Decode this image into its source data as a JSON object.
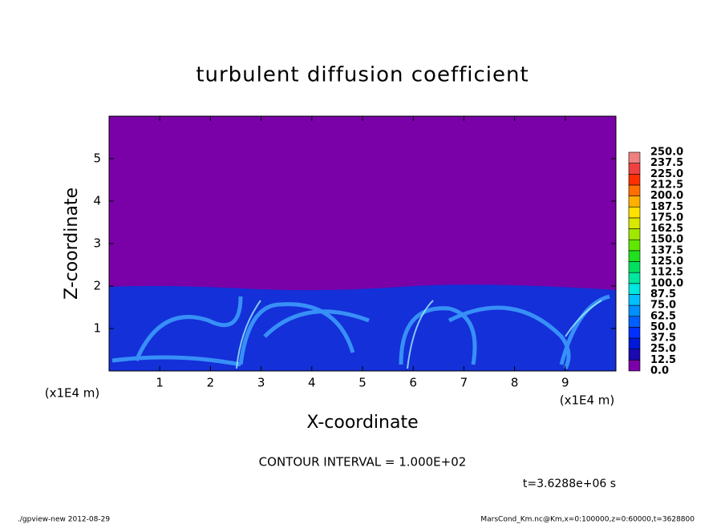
{
  "chart_data": {
    "type": "contour",
    "title": "turbulent diffusion coefficient",
    "xlabel": "X-coordinate",
    "ylabel": "Z-coordinate",
    "xunit": "(x1E4 m)",
    "yunit": "(x1E4 m)",
    "xlim": [
      0,
      10
    ],
    "ylim": [
      0,
      6
    ],
    "xticks": [
      1,
      2,
      3,
      4,
      5,
      6,
      7,
      8,
      9
    ],
    "yticks": [
      1,
      2,
      3,
      4,
      5
    ],
    "contour_interval": "CONTOUR INTERVAL = 1.000E+02",
    "time_label": "t=3.6288e+06 s",
    "footer_left": "./gpview-new  2012-08-29",
    "footer_right": "MarsCond_Km.nc@Km,x=0:100000,z=0:60000,t=3628800",
    "colorbar": {
      "levels": [
        {
          "value": 0,
          "label": "0.0"
        },
        {
          "value": 12.5,
          "label": "12.5"
        },
        {
          "value": 25,
          "label": "25.0"
        },
        {
          "value": 37.5,
          "label": "37.5"
        },
        {
          "value": 50,
          "label": "50.0"
        },
        {
          "value": 62.5,
          "label": "62.5"
        },
        {
          "value": 75,
          "label": "75.0"
        },
        {
          "value": 87.5,
          "label": "87.5"
        },
        {
          "value": 100,
          "label": "100.0"
        },
        {
          "value": 112.5,
          "label": "112.5"
        },
        {
          "value": 125,
          "label": "125.0"
        },
        {
          "value": 137.5,
          "label": "137.5"
        },
        {
          "value": 150,
          "label": "150.0"
        },
        {
          "value": 162.5,
          "label": "162.5"
        },
        {
          "value": 175,
          "label": "175.0"
        },
        {
          "value": 187.5,
          "label": "187.5"
        },
        {
          "value": 200,
          "label": "200.0"
        },
        {
          "value": 212.5,
          "label": "212.5"
        },
        {
          "value": 225,
          "label": "225.0"
        },
        {
          "value": 237.5,
          "label": "237.5"
        },
        {
          "value": 250,
          "label": "250.0"
        }
      ],
      "colors": [
        "#7a00a8",
        "#1a0ab0",
        "#0018d8",
        "#0030ff",
        "#0060ff",
        "#0090ff",
        "#00c0ff",
        "#00e8e0",
        "#00e8a0",
        "#00e060",
        "#20e020",
        "#60e800",
        "#a0e800",
        "#d8e800",
        "#ffe000",
        "#ffb000",
        "#ff7000",
        "#ff3000",
        "#f04040",
        "#f08080"
      ]
    }
  }
}
